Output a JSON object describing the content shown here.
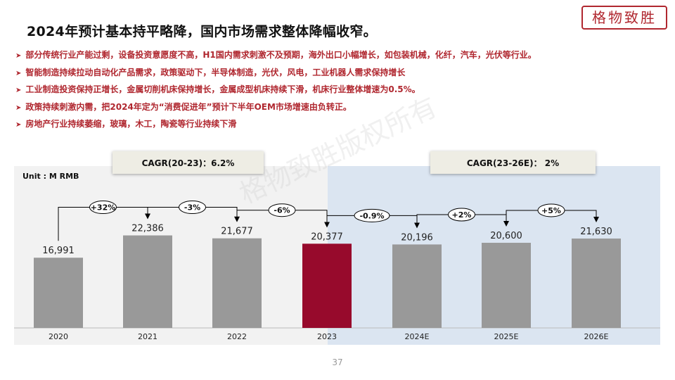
{
  "title": "2024年预计基本持平略降，国内市场需求整体降幅收窄。",
  "logo_text": "格物致胜",
  "bullet_marker": "➤",
  "bullets": [
    "部分传统行业产能过剩，设备投资意愿度不高，H1国内需求刺激不及预期，海外出口小幅增长，如包装机械，化纤，汽车，光伏等行业。",
    "智能制造持续拉动自动化产品需求，政策驱动下，半导体制造，光伏，风电，工业机器人需求保持增长",
    "工业制造投资保持正增长，金属切削机床保持增长，金属成型机床持续下滑，机床行业整体增速为0.5%。",
    "政策持续刺激内需，把2024年定为“消费促进年”预计下半年OEM市场增速由负转正。",
    "房地产行业持续萎缩，玻璃，木工，陶瓷等行业持续下滑"
  ],
  "watermark": "格物致胜版权所有",
  "page_number": "37",
  "colors": {
    "accent": "#b0272f",
    "bar_default": "#999999",
    "bar_highlight": "#970a2c",
    "left_panel_bg": "#f2f2f2",
    "right_panel_bg": "#dbe5f1",
    "cagr_box_bg": "#eeede4"
  },
  "chart_data": {
    "type": "bar",
    "unit": "Unit : M RMB",
    "categories": [
      "2020",
      "2021",
      "2022",
      "2023",
      "2024E",
      "2025E",
      "2026E"
    ],
    "values": [
      16991,
      22386,
      21677,
      20377,
      20196,
      20600,
      21630
    ],
    "value_labels": [
      "16,991",
      "22,386",
      "21,677",
      "20,377",
      "20,196",
      "20,600",
      "21,630"
    ],
    "highlight_index": 3,
    "growth_labels": [
      "+32%",
      "-3%",
      "-6%",
      "-0.9%",
      "+2%",
      "+5%"
    ],
    "cagr": [
      {
        "label": "CAGR(20-23)：6.2%",
        "period": "2020-2023"
      },
      {
        "label": "CAGR(23-26E)： 2%",
        "period": "2023-2026E"
      }
    ],
    "grid": false,
    "legend": "none"
  }
}
